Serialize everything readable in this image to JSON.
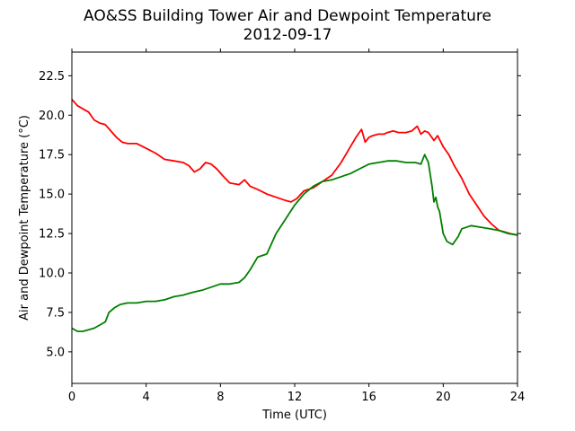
{
  "chart_data": {
    "type": "line",
    "title": "AO&SS Building Tower Air and Dewpoint Temperature",
    "subtitle": "2012-09-17",
    "xlabel": "Time (UTC)",
    "ylabel": "Air and Dewpoint Temperature (°C)",
    "xlim": [
      0,
      24
    ],
    "ylim": [
      3,
      24
    ],
    "x_ticks": [
      0,
      4,
      8,
      12,
      16,
      20,
      24
    ],
    "x_tick_labels": [
      "0",
      "4",
      "8",
      "12",
      "16",
      "20",
      "24"
    ],
    "y_ticks": [
      5.0,
      7.5,
      10.0,
      12.5,
      15.0,
      17.5,
      20.0,
      22.5
    ],
    "y_tick_labels": [
      "5.0",
      "7.5",
      "10.0",
      "12.5",
      "15.0",
      "17.5",
      "20.0",
      "22.5"
    ],
    "grid": false,
    "series": [
      {
        "color": "#ff0000",
        "x": [
          0,
          0.3,
          0.6,
          0.9,
          1.2,
          1.5,
          1.8,
          2.1,
          2.4,
          2.7,
          3.0,
          3.5,
          4.0,
          4.5,
          5.0,
          5.5,
          6.0,
          6.3,
          6.6,
          6.9,
          7.2,
          7.5,
          7.8,
          8.1,
          8.5,
          9.0,
          9.3,
          9.6,
          10.0,
          10.5,
          11.0,
          11.5,
          11.8,
          12.1,
          12.5,
          13.0,
          13.5,
          14.0,
          14.5,
          15.0,
          15.3,
          15.6,
          15.8,
          16.0,
          16.2,
          16.5,
          16.8,
          17.0,
          17.3,
          17.6,
          18.0,
          18.3,
          18.6,
          18.8,
          19.0,
          19.2,
          19.5,
          19.7,
          20.0,
          20.3,
          20.6,
          21.0,
          21.4,
          21.8,
          22.2,
          22.6,
          22.8,
          23.0,
          23.3,
          23.6,
          24.0
        ],
        "y": [
          21.0,
          20.6,
          20.4,
          20.2,
          19.7,
          19.5,
          19.4,
          19.0,
          18.6,
          18.3,
          18.2,
          18.2,
          17.9,
          17.6,
          17.2,
          17.1,
          17.0,
          16.8,
          16.4,
          16.6,
          17.0,
          16.9,
          16.6,
          16.2,
          15.7,
          15.6,
          15.9,
          15.5,
          15.3,
          15.0,
          14.8,
          14.6,
          14.5,
          14.7,
          15.2,
          15.4,
          15.8,
          16.2,
          17.0,
          18.0,
          18.6,
          19.1,
          18.3,
          18.6,
          18.7,
          18.8,
          18.8,
          18.9,
          19.0,
          18.9,
          18.9,
          19.0,
          19.3,
          18.8,
          19.0,
          18.9,
          18.4,
          18.7,
          18.0,
          17.5,
          16.8,
          16.0,
          15.0,
          14.3,
          13.6,
          13.1,
          12.9,
          12.7,
          12.6,
          12.5,
          12.4
        ]
      },
      {
        "color": "#008000",
        "x": [
          0,
          0.3,
          0.6,
          0.9,
          1.2,
          1.5,
          1.8,
          2.0,
          2.3,
          2.6,
          3.0,
          3.5,
          4.0,
          4.5,
          5.0,
          5.5,
          6.0,
          6.3,
          6.6,
          7.0,
          7.5,
          8.0,
          8.5,
          9.0,
          9.3,
          9.6,
          10.0,
          10.5,
          11.0,
          11.5,
          12.0,
          12.5,
          13.0,
          13.5,
          14.0,
          14.5,
          15.0,
          15.5,
          16.0,
          16.5,
          17.0,
          17.5,
          18.0,
          18.5,
          18.8,
          19.0,
          19.2,
          19.4,
          19.5,
          19.6,
          19.7,
          19.8,
          20.0,
          20.2,
          20.5,
          20.8,
          21.0,
          21.5,
          22.0,
          22.5,
          23.0,
          23.5,
          24.0
        ],
        "y": [
          6.5,
          6.3,
          6.3,
          6.4,
          6.5,
          6.7,
          6.9,
          7.5,
          7.8,
          8.0,
          8.1,
          8.1,
          8.2,
          8.2,
          8.3,
          8.5,
          8.6,
          8.7,
          8.8,
          8.9,
          9.1,
          9.3,
          9.3,
          9.4,
          9.7,
          10.2,
          11.0,
          11.2,
          12.5,
          13.4,
          14.3,
          15.0,
          15.5,
          15.8,
          15.9,
          16.1,
          16.3,
          16.6,
          16.9,
          17.0,
          17.1,
          17.1,
          17.0,
          17.0,
          16.9,
          17.5,
          17.0,
          15.5,
          14.5,
          14.8,
          14.2,
          13.9,
          12.5,
          12.0,
          11.8,
          12.3,
          12.8,
          13.0,
          12.9,
          12.8,
          12.7,
          12.5,
          12.4
        ]
      }
    ]
  }
}
